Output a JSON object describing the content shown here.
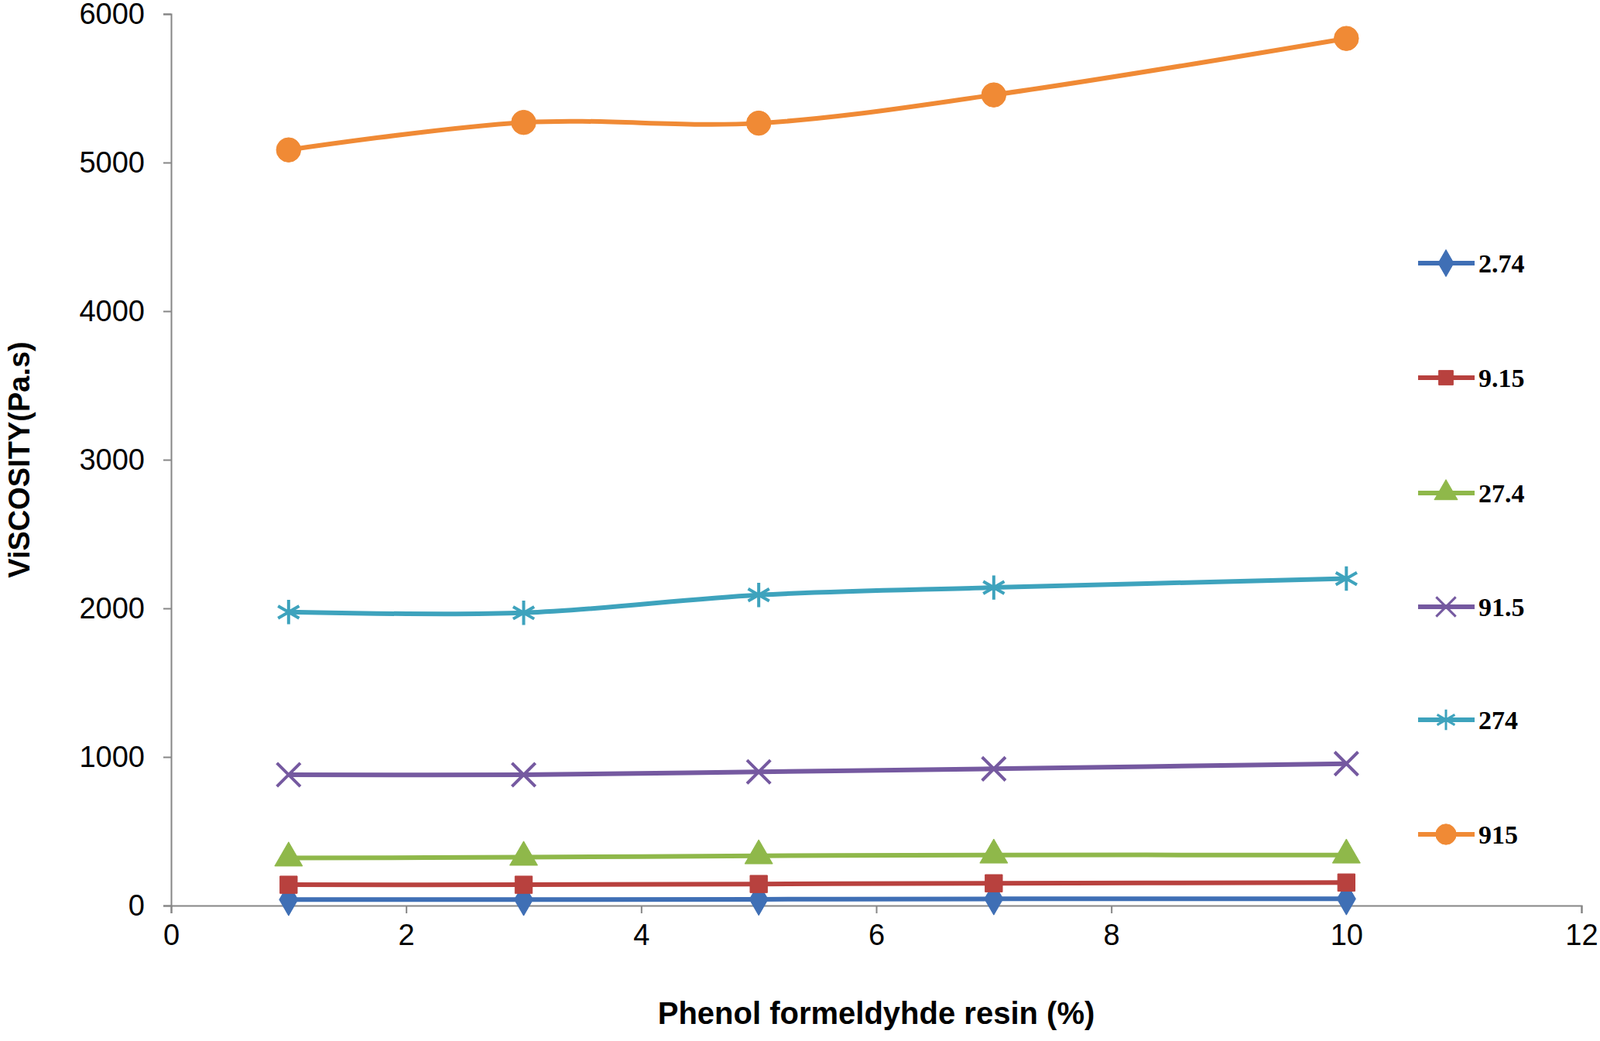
{
  "chart_data": {
    "type": "line",
    "x_label": "Phenol formeldyhde resin (%)",
    "y_label": "ViSCOSITY(Pa.s)",
    "x": [
      1,
      3,
      5,
      7,
      10
    ],
    "series": [
      {
        "name": "2.74",
        "color": "#3f6fb5",
        "marker": "diamond",
        "values": [
          40,
          40,
          42,
          45,
          45
        ]
      },
      {
        "name": "9.15",
        "color": "#b8413e",
        "marker": "square",
        "values": [
          140,
          140,
          145,
          150,
          155
        ]
      },
      {
        "name": "27.4",
        "color": "#8fb84a",
        "marker": "triangle",
        "values": [
          320,
          325,
          335,
          340,
          340
        ]
      },
      {
        "name": "91.5",
        "color": "#7559a0",
        "marker": "x",
        "values": [
          880,
          880,
          900,
          920,
          955
        ]
      },
      {
        "name": "274",
        "color": "#3ea3bd",
        "marker": "asterisk",
        "values": [
          1975,
          1970,
          2090,
          2140,
          2200
        ]
      },
      {
        "name": "915",
        "color": "#f08a35",
        "marker": "circle",
        "values": [
          5085,
          5270,
          5265,
          5455,
          5835
        ]
      }
    ],
    "xlim": [
      0,
      12
    ],
    "xticks": [
      0,
      2,
      4,
      6,
      8,
      10,
      12
    ],
    "ylim": [
      0,
      6000
    ],
    "yticks": [
      0,
      1000,
      2000,
      3000,
      4000,
      5000,
      6000
    ],
    "grid": false,
    "legend": "right",
    "line_style": "solid"
  }
}
